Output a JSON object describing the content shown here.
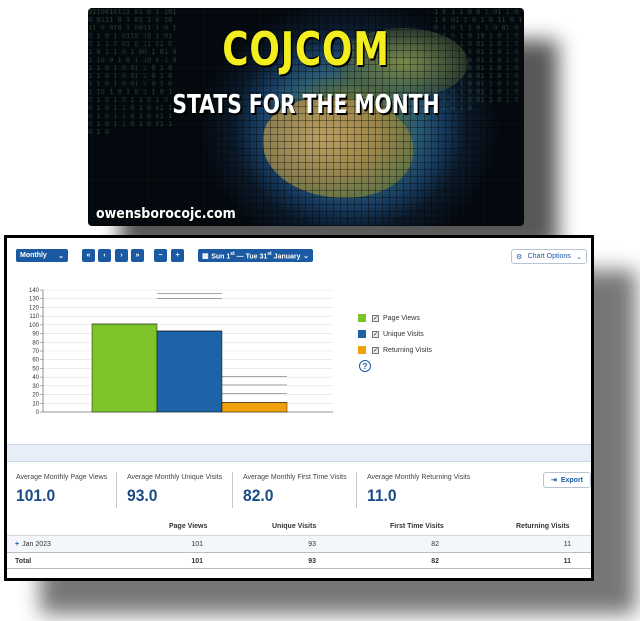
{
  "banner": {
    "title": "COJCOM",
    "subtitle": "STATS FOR THE MONTH",
    "site": "owensborocojc.com"
  },
  "toolbar": {
    "period": "Monthly",
    "first_label": "«",
    "prev_label": "‹",
    "next_label": "›",
    "last_label": "»",
    "zoom_out_label": "−",
    "zoom_in_label": "+",
    "date_range_start": "Sun 1",
    "date_range_start_sup": "st",
    "date_range_mid": " — Tue 31",
    "date_range_end_sup": "st",
    "date_range_end": " January",
    "chart_options": "Chart Options"
  },
  "legend": [
    {
      "label": "Page Views",
      "color": "#7dc42b"
    },
    {
      "label": "Unique Visits",
      "color": "#1d63a7"
    },
    {
      "label": "Returning Visits",
      "color": "#f0a10a"
    }
  ],
  "chart_data": {
    "type": "bar",
    "categories": [
      "Jan 2023"
    ],
    "series": [
      {
        "name": "Page Views",
        "values": [
          101
        ],
        "color": "#7dc42b"
      },
      {
        "name": "Unique Visits",
        "values": [
          93
        ],
        "color": "#1d63a7"
      },
      {
        "name": "Returning Visits",
        "values": [
          11
        ],
        "color": "#f0a10a"
      }
    ],
    "yticks": [
      "0",
      "10",
      "20",
      "30",
      "40",
      "50",
      "60",
      "70",
      "80",
      "90",
      "100",
      "110",
      "120",
      "130",
      "140"
    ],
    "ylim": [
      0,
      140
    ],
    "grid": true,
    "legend": "right"
  },
  "stats": [
    {
      "label": "Average Monthly Page Views",
      "value": "101.0"
    },
    {
      "label": "Average Monthly Unique Visits",
      "value": "93.0"
    },
    {
      "label": "Average Monthly First Time Visits",
      "value": "82.0"
    },
    {
      "label": "Average Monthly Returning Visits",
      "value": "11.0"
    }
  ],
  "export_label": "Export",
  "table": {
    "headers": [
      "Page Views",
      "Unique Visits",
      "First Time Visits",
      "Returning Visits"
    ],
    "rows": [
      {
        "label": "Jan 2023",
        "values": [
          "101",
          "93",
          "82",
          "11"
        ]
      }
    ],
    "total": {
      "label": "Total",
      "values": [
        "101",
        "93",
        "82",
        "11"
      ]
    }
  }
}
